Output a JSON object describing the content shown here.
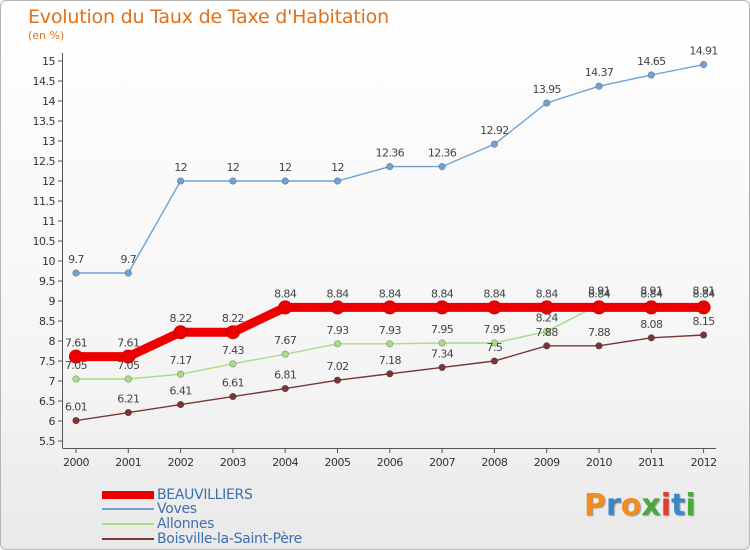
{
  "title": "Evolution du Taux de Taxe d'Habitation",
  "subtitle": "(en %)",
  "logo": {
    "text": "Proxiti",
    "colors": [
      "#f28c1c",
      "#3b86c8",
      "#f28c1c",
      "#4aa83c",
      "#e63a2a",
      "#3b86c8",
      "#4aa83c"
    ]
  },
  "chart_data": {
    "type": "line",
    "x": [
      "2000",
      "2001",
      "2002",
      "2003",
      "2004",
      "2005",
      "2006",
      "2007",
      "2008",
      "2009",
      "2010",
      "2011",
      "2012"
    ],
    "ylim": [
      5.5,
      15
    ],
    "yticks": [
      "5.5",
      "6",
      "6.5",
      "7",
      "7.5",
      "8",
      "8.5",
      "9",
      "9.5",
      "10",
      "10.5",
      "11",
      "11.5",
      "12",
      "12.5",
      "13",
      "13.5",
      "14",
      "14.5",
      "15"
    ],
    "grid": false,
    "legend": "bottom-left",
    "series": [
      {
        "name": "Voves",
        "color": "#6ea3d3",
        "values": [
          9.7,
          9.7,
          12,
          12,
          12,
          12,
          12.36,
          12.36,
          12.92,
          13.95,
          14.37,
          14.65,
          14.91
        ],
        "labels": [
          "9.7",
          "9.7",
          "12",
          "12",
          "12",
          "12",
          "12.36",
          "12.36",
          "12.92",
          "13.95",
          "14.37",
          "14.65",
          "14.91"
        ]
      },
      {
        "name": "Allonnes",
        "color": "#a7dc88",
        "values": [
          7.05,
          7.05,
          7.17,
          7.43,
          7.67,
          7.93,
          7.93,
          7.95,
          7.95,
          8.24,
          8.91,
          8.91,
          8.91
        ],
        "labels": [
          "7.05",
          "7.05",
          "7.17",
          "7.43",
          "7.67",
          "7.93",
          "7.93",
          "7.95",
          "7.95",
          "8.24",
          "8.91",
          "8.91",
          "8.91"
        ]
      },
      {
        "name": "Boisville-la-Saint-Père",
        "color": "#7a3535",
        "values": [
          6.01,
          6.21,
          6.41,
          6.61,
          6.81,
          7.02,
          7.18,
          7.34,
          7.5,
          7.88,
          7.88,
          8.08,
          8.15
        ],
        "labels": [
          "6.01",
          "6.21",
          "6.41",
          "6.61",
          "6.81",
          "7.02",
          "7.18",
          "7.34",
          "7.5",
          "7.88",
          "7.88",
          "8.08",
          "8.15"
        ]
      },
      {
        "name": "BEAUVILLIERS",
        "color": "#ee0000",
        "values": [
          7.61,
          7.61,
          8.22,
          8.22,
          8.84,
          8.84,
          8.84,
          8.84,
          8.84,
          8.84,
          8.84,
          8.84,
          8.84
        ],
        "labels": [
          "7.61",
          "7.61",
          "8.22",
          "8.22",
          "8.84",
          "8.84",
          "8.84",
          "8.84",
          "8.84",
          "8.84",
          "8.84",
          "8.84",
          "8.84"
        ]
      }
    ],
    "legend_order": [
      "BEAUVILLIERS",
      "Voves",
      "Allonnes",
      "Boisville-la-Saint-Père"
    ]
  }
}
